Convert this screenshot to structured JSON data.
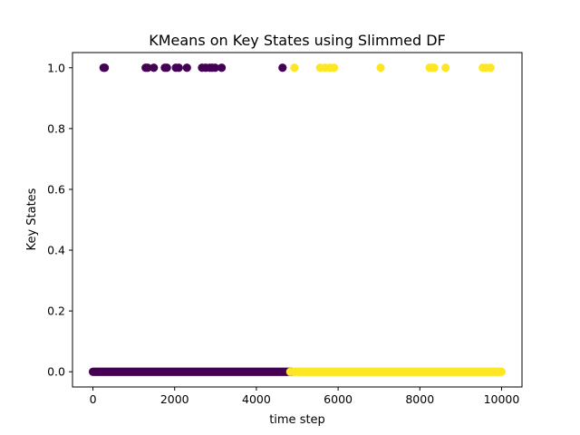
{
  "chart_data": {
    "type": "scatter",
    "title": "KMeans on Key States using Slimmed DF",
    "xlabel": "time step",
    "ylabel": "Key States",
    "xlim": [
      -500,
      10500
    ],
    "ylim": [
      -0.05,
      1.05
    ],
    "x_ticks": [
      0,
      2000,
      4000,
      6000,
      8000,
      10000
    ],
    "y_ticks": [
      0.0,
      0.2,
      0.4,
      0.6,
      0.8,
      1.0
    ],
    "x_tick_labels": [
      "0",
      "2000",
      "4000",
      "6000",
      "8000",
      "10000"
    ],
    "y_tick_labels": [
      "0.0",
      "0.2",
      "0.4",
      "0.6",
      "0.8",
      "1.0"
    ],
    "grid": false,
    "clusters": [
      {
        "color": "#440154",
        "points_y1": [
          260,
          290,
          1290,
          1340,
          1490,
          1760,
          1810,
          2030,
          2100,
          2300,
          2670,
          2760,
          2860,
          2920,
          2990,
          3150,
          4640
        ],
        "band_y0": [
          0,
          4850
        ]
      },
      {
        "color": "#fde725",
        "points_y1": [
          4930,
          5560,
          5680,
          5800,
          5900,
          7040,
          8240,
          8300,
          8350,
          8630,
          9540,
          9620,
          9730
        ],
        "points_y0": [
          4830
        ],
        "band_y0": [
          4930,
          10000
        ]
      }
    ]
  }
}
